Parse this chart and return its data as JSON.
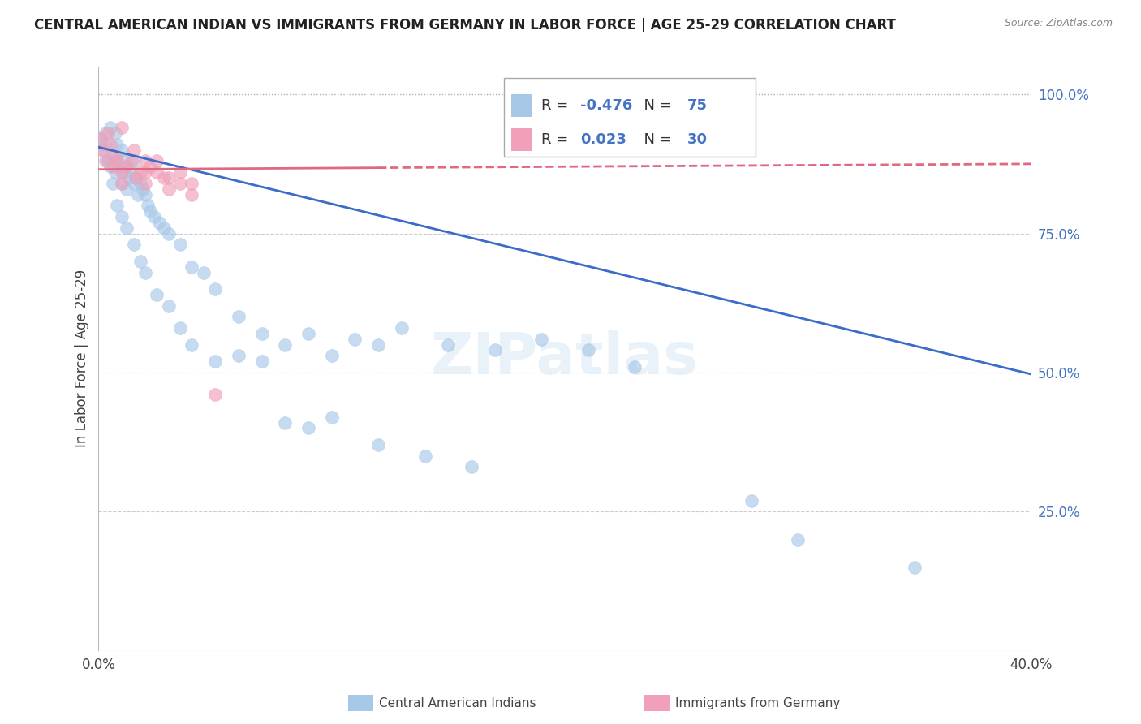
{
  "title": "CENTRAL AMERICAN INDIAN VS IMMIGRANTS FROM GERMANY IN LABOR FORCE | AGE 25-29 CORRELATION CHART",
  "source": "Source: ZipAtlas.com",
  "ylabel": "In Labor Force | Age 25-29",
  "xlim": [
    0.0,
    0.4
  ],
  "ylim": [
    0.0,
    1.05
  ],
  "R_blue": -0.476,
  "N_blue": 75,
  "R_pink": 0.023,
  "N_pink": 30,
  "blue_color": "#a8c8e8",
  "pink_color": "#f0a0b8",
  "blue_line_color": "#3a6cc8",
  "pink_line_color": "#e06880",
  "legend_label_blue": "Central American Indians",
  "legend_label_pink": "Immigrants from Germany",
  "blue_scatter_x": [
    0.001,
    0.002,
    0.003,
    0.004,
    0.005,
    0.005,
    0.006,
    0.007,
    0.007,
    0.008,
    0.008,
    0.009,
    0.01,
    0.01,
    0.011,
    0.011,
    0.012,
    0.012,
    0.013,
    0.014,
    0.015,
    0.015,
    0.016,
    0.017,
    0.018,
    0.019,
    0.02,
    0.021,
    0.022,
    0.024,
    0.026,
    0.028,
    0.03,
    0.035,
    0.04,
    0.045,
    0.05,
    0.06,
    0.07,
    0.08,
    0.09,
    0.1,
    0.11,
    0.12,
    0.13,
    0.15,
    0.17,
    0.19,
    0.21,
    0.23,
    0.003,
    0.004,
    0.006,
    0.008,
    0.01,
    0.012,
    0.015,
    0.018,
    0.02,
    0.025,
    0.03,
    0.035,
    0.04,
    0.05,
    0.06,
    0.07,
    0.08,
    0.09,
    0.1,
    0.12,
    0.14,
    0.16,
    0.28,
    0.3,
    0.35
  ],
  "blue_scatter_y": [
    0.92,
    0.9,
    0.91,
    0.88,
    0.87,
    0.94,
    0.89,
    0.93,
    0.86,
    0.88,
    0.91,
    0.87,
    0.9,
    0.84,
    0.88,
    0.86,
    0.87,
    0.83,
    0.85,
    0.86,
    0.88,
    0.84,
    0.85,
    0.82,
    0.84,
    0.83,
    0.82,
    0.8,
    0.79,
    0.78,
    0.77,
    0.76,
    0.75,
    0.73,
    0.69,
    0.68,
    0.65,
    0.6,
    0.57,
    0.55,
    0.57,
    0.53,
    0.56,
    0.55,
    0.58,
    0.55,
    0.54,
    0.56,
    0.54,
    0.51,
    0.93,
    0.88,
    0.84,
    0.8,
    0.78,
    0.76,
    0.73,
    0.7,
    0.68,
    0.64,
    0.62,
    0.58,
    0.55,
    0.52,
    0.53,
    0.52,
    0.41,
    0.4,
    0.42,
    0.37,
    0.35,
    0.33,
    0.27,
    0.2,
    0.15
  ],
  "pink_scatter_x": [
    0.001,
    0.002,
    0.003,
    0.004,
    0.005,
    0.006,
    0.007,
    0.008,
    0.01,
    0.012,
    0.014,
    0.016,
    0.018,
    0.02,
    0.022,
    0.025,
    0.028,
    0.03,
    0.035,
    0.04,
    0.01,
    0.015,
    0.02,
    0.025,
    0.03,
    0.035,
    0.04,
    0.05,
    0.01,
    0.02
  ],
  "pink_scatter_y": [
    0.92,
    0.9,
    0.88,
    0.93,
    0.91,
    0.87,
    0.89,
    0.88,
    0.86,
    0.87,
    0.88,
    0.85,
    0.86,
    0.84,
    0.87,
    0.88,
    0.85,
    0.83,
    0.84,
    0.82,
    0.94,
    0.9,
    0.88,
    0.86,
    0.85,
    0.86,
    0.84,
    0.46,
    0.84,
    0.86
  ],
  "blue_line_x0": 0.0,
  "blue_line_y0": 0.905,
  "blue_line_x1": 0.4,
  "blue_line_y1": 0.497,
  "pink_line_x0": 0.0,
  "pink_line_y0": 0.865,
  "pink_line_x1": 0.4,
  "pink_line_y1": 0.875
}
